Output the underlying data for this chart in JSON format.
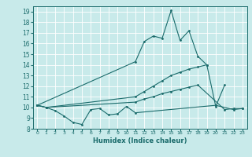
{
  "xlabel": "Humidex (Indice chaleur)",
  "bg_color": "#c8eaea",
  "grid_color": "#ffffff",
  "line_color": "#1a6b6b",
  "xlim": [
    -0.5,
    23.5
  ],
  "ylim": [
    8,
    19.5
  ],
  "xticks": [
    0,
    1,
    2,
    3,
    4,
    5,
    6,
    7,
    8,
    9,
    10,
    11,
    12,
    13,
    14,
    15,
    16,
    17,
    18,
    19,
    20,
    21,
    22,
    23
  ],
  "yticks": [
    8,
    9,
    10,
    11,
    12,
    13,
    14,
    15,
    16,
    17,
    18,
    19
  ],
  "line1_x": [
    0,
    1,
    2,
    3,
    4,
    5,
    6,
    7,
    8,
    9,
    10,
    11,
    20,
    22,
    23
  ],
  "line1_y": [
    10.2,
    10.0,
    9.7,
    9.2,
    8.6,
    8.4,
    9.8,
    9.9,
    9.3,
    9.4,
    10.1,
    9.5,
    10.2,
    9.8,
    9.9
  ],
  "line2_x": [
    0,
    11,
    12,
    13,
    14,
    15,
    16,
    17,
    18,
    19,
    20,
    21
  ],
  "line2_y": [
    10.2,
    14.3,
    16.2,
    16.7,
    16.5,
    19.1,
    16.3,
    17.2,
    14.8,
    14.0,
    10.1,
    12.1
  ],
  "line3_x": [
    0,
    1,
    11,
    12,
    13,
    14,
    15,
    16,
    17,
    18,
    19
  ],
  "line3_y": [
    10.2,
    10.0,
    11.0,
    11.5,
    12.0,
    12.5,
    13.0,
    13.3,
    13.6,
    13.8,
    14.0
  ],
  "line4_x": [
    0,
    1,
    11,
    12,
    13,
    14,
    15,
    16,
    17,
    18,
    21,
    22,
    23
  ],
  "line4_y": [
    10.2,
    10.0,
    10.5,
    10.8,
    11.0,
    11.3,
    11.5,
    11.7,
    11.9,
    12.1,
    9.8,
    9.9,
    9.9
  ]
}
